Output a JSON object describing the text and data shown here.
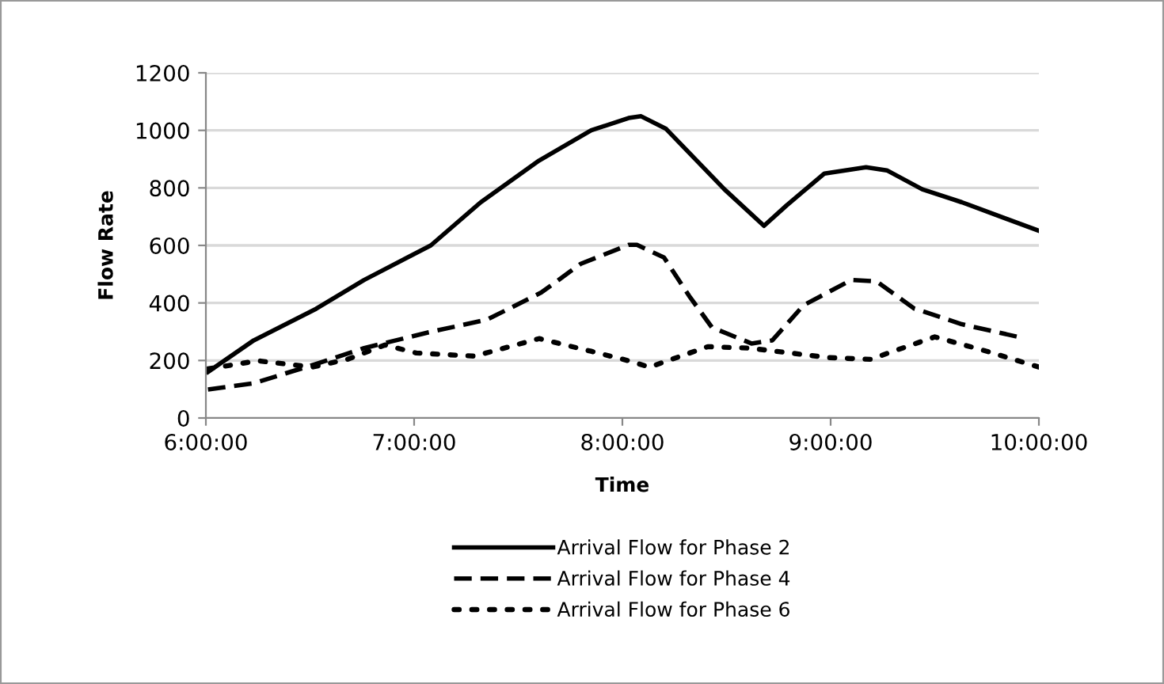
{
  "chart_data": {
    "type": "line",
    "xlabel": "Time",
    "ylabel": "Flow Rate",
    "xlim": [
      6,
      10
    ],
    "xticks": [
      {
        "value": 6,
        "label": "6:00:00"
      },
      {
        "value": 7,
        "label": "7:00:00"
      },
      {
        "value": 8,
        "label": "8:00:00"
      },
      {
        "value": 9,
        "label": "9:00:00"
      },
      {
        "value": 10,
        "label": "10:00:00"
      }
    ],
    "ylim": [
      0,
      1200
    ],
    "yticks": [
      0,
      200,
      400,
      600,
      800,
      1000,
      1200
    ],
    "grid": "y",
    "legend": "bottom",
    "marker": "none",
    "series": [
      {
        "name": "Arrival Flow for Phase 2",
        "color": "#000000",
        "line_style": "solid",
        "x": [
          6.01,
          6.23,
          6.53,
          6.76,
          7.08,
          7.32,
          7.6,
          7.85,
          8.03,
          8.09,
          8.21,
          8.49,
          8.68,
          8.79,
          8.97,
          9.17,
          9.27,
          9.44,
          9.63,
          10.0
        ],
        "values": [
          160,
          270,
          380,
          480,
          600,
          750,
          895,
          1000,
          1043,
          1049,
          1005,
          795,
          668,
          740,
          850,
          872,
          861,
          795,
          750,
          651
        ]
      },
      {
        "name": "Arrival Flow for Phase 4",
        "color": "#000000",
        "line_style": "dashed",
        "x": [
          6.01,
          6.23,
          6.53,
          6.76,
          7.07,
          7.35,
          7.61,
          7.8,
          8.03,
          8.07,
          8.2,
          8.32,
          8.43,
          8.62,
          8.72,
          8.87,
          9.1,
          9.22,
          9.4,
          9.63,
          9.9
        ],
        "values": [
          99,
          121,
          188,
          243,
          298,
          342,
          436,
          536,
          602,
          602,
          558,
          425,
          315,
          259,
          270,
          392,
          480,
          475,
          381,
          326,
          282
        ]
      },
      {
        "name": "Arrival Flow for Phase 6",
        "color": "#000000",
        "line_style": "dotted",
        "x": [
          6.01,
          6.25,
          6.51,
          6.68,
          6.86,
          7.01,
          7.29,
          7.6,
          7.85,
          8.03,
          8.13,
          8.41,
          8.61,
          8.99,
          9.19,
          9.5,
          9.75,
          10.0
        ],
        "values": [
          171,
          199,
          177,
          204,
          254,
          226,
          215,
          276,
          232,
          199,
          177,
          248,
          243,
          210,
          204,
          282,
          232,
          177
        ]
      }
    ]
  }
}
